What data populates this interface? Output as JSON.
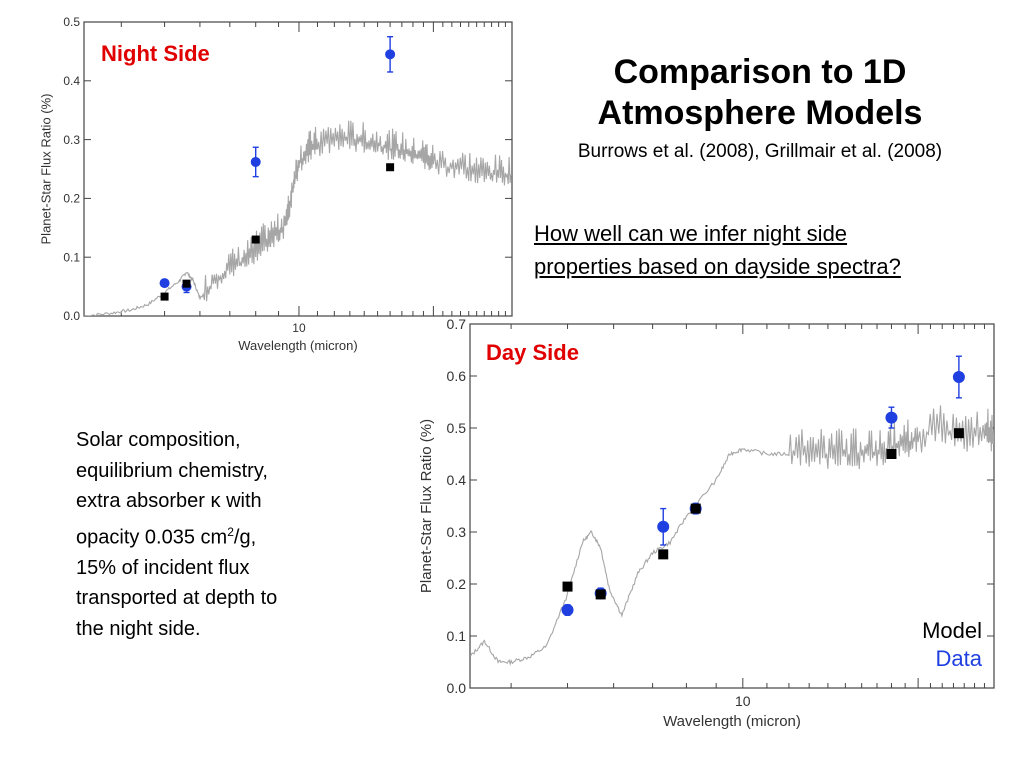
{
  "slide": {
    "title_line1": "Comparison to 1D",
    "title_line2": "Atmosphere Models",
    "subtitle": "Burrows et al. (2008), Grillmair et al. (2008)",
    "question_line1": "How well can we infer night side",
    "question_line2": "properties based on dayside spectra?",
    "description_lines": [
      "Solar composition,",
      "equilibrium chemistry,",
      "extra absorber κ with",
      "opacity 0.035 cm",
      "15% of incident flux",
      "transported at depth to",
      "the night side."
    ],
    "description_sup": "2",
    "description_suffix": "/g,",
    "legend_model": "Model",
    "legend_data": "Data",
    "colors": {
      "model_line": "#a6a6a6",
      "model_squares": "#000000",
      "data_points": "#1f3fe0",
      "panel_label": "#e00000"
    }
  },
  "chart_data": [
    {
      "name": "night-side",
      "type": "scatter",
      "panel_label": "Night Side",
      "xlabel": "Wavelength (micron)",
      "ylabel": "Planet-Star Flux Ratio (%)",
      "x_scale": "log",
      "xlim": [
        3.3,
        30
      ],
      "ylim": [
        0,
        0.5
      ],
      "yticks": [
        0.0,
        0.1,
        0.2,
        0.3,
        0.4,
        0.5
      ],
      "yticklabels": [
        "0.0",
        "0.1",
        "0.2",
        "0.3",
        "0.4",
        "0.5"
      ],
      "xtick_labels": [
        "10"
      ],
      "model_spectrum": {
        "x": [
          3.3,
          3.8,
          4.2,
          4.6,
          5.0,
          5.4,
          5.6,
          5.8,
          6.0,
          6.5,
          7.0,
          7.5,
          8.0,
          8.5,
          9.0,
          9.4,
          9.7,
          10.0,
          10.5,
          11.0,
          12,
          13,
          14,
          15,
          16,
          17,
          18,
          19,
          20,
          22,
          24,
          26,
          28,
          30
        ],
        "y": [
          0.0,
          0.005,
          0.01,
          0.02,
          0.04,
          0.06,
          0.075,
          0.06,
          0.03,
          0.06,
          0.08,
          0.09,
          0.11,
          0.13,
          0.14,
          0.16,
          0.22,
          0.26,
          0.28,
          0.29,
          0.3,
          0.3,
          0.295,
          0.29,
          0.285,
          0.28,
          0.27,
          0.27,
          0.26,
          0.25,
          0.25,
          0.24,
          0.24,
          0.24
        ]
      },
      "series": [
        {
          "name": "Model",
          "marker": "square",
          "x": [
            5.0,
            5.6,
            8.0,
            16.0
          ],
          "y": [
            0.033,
            0.055,
            0.13,
            0.253
          ]
        },
        {
          "name": "Data",
          "marker": "circle",
          "x": [
            5.0,
            5.6,
            8.0,
            16.0
          ],
          "y": [
            0.056,
            0.05,
            0.262,
            0.445
          ],
          "yerr": [
            0.005,
            0.01,
            0.025,
            0.03
          ]
        }
      ]
    },
    {
      "name": "day-side",
      "type": "scatter",
      "panel_label": "Day Side",
      "xlabel": "Wavelength (micron)",
      "ylabel": "Planet-Star Flux Ratio (%)",
      "x_scale": "log",
      "xlim": [
        3.4,
        27
      ],
      "ylim": [
        0,
        0.7
      ],
      "yticks": [
        0.0,
        0.1,
        0.2,
        0.3,
        0.4,
        0.5,
        0.6,
        0.7
      ],
      "yticklabels": [
        "0.0",
        "0.1",
        "0.2",
        "0.3",
        "0.4",
        "0.5",
        "0.6",
        "0.7"
      ],
      "xtick_labels": [
        "10"
      ],
      "model_spectrum": {
        "x": [
          3.4,
          3.6,
          3.8,
          4.0,
          4.3,
          4.6,
          5.0,
          5.3,
          5.5,
          5.7,
          5.9,
          6.2,
          6.6,
          7.0,
          7.5,
          8.0,
          9.0,
          9.5,
          10,
          11,
          12,
          13,
          14,
          15,
          16,
          17,
          18,
          19,
          20,
          22,
          24,
          26,
          27
        ],
        "y": [
          0.06,
          0.09,
          0.05,
          0.05,
          0.06,
          0.08,
          0.18,
          0.28,
          0.3,
          0.27,
          0.19,
          0.14,
          0.22,
          0.26,
          0.28,
          0.33,
          0.4,
          0.45,
          0.46,
          0.45,
          0.45,
          0.45,
          0.45,
          0.45,
          0.45,
          0.45,
          0.46,
          0.47,
          0.48,
          0.5,
          0.48,
          0.5,
          0.47
        ]
      },
      "series": [
        {
          "name": "Model",
          "marker": "square",
          "x": [
            5.0,
            5.7,
            7.3,
            8.3,
            18.0,
            23.5
          ],
          "y": [
            0.195,
            0.18,
            0.257,
            0.345,
            0.45,
            0.49
          ]
        },
        {
          "name": "Data",
          "marker": "circle",
          "x": [
            5.0,
            5.7,
            7.3,
            8.3,
            18.0,
            23.5
          ],
          "y": [
            0.15,
            0.182,
            0.31,
            0.345,
            0.52,
            0.598
          ],
          "yerr": [
            0.01,
            0.01,
            0.035,
            0.01,
            0.02,
            0.04
          ]
        }
      ]
    }
  ]
}
